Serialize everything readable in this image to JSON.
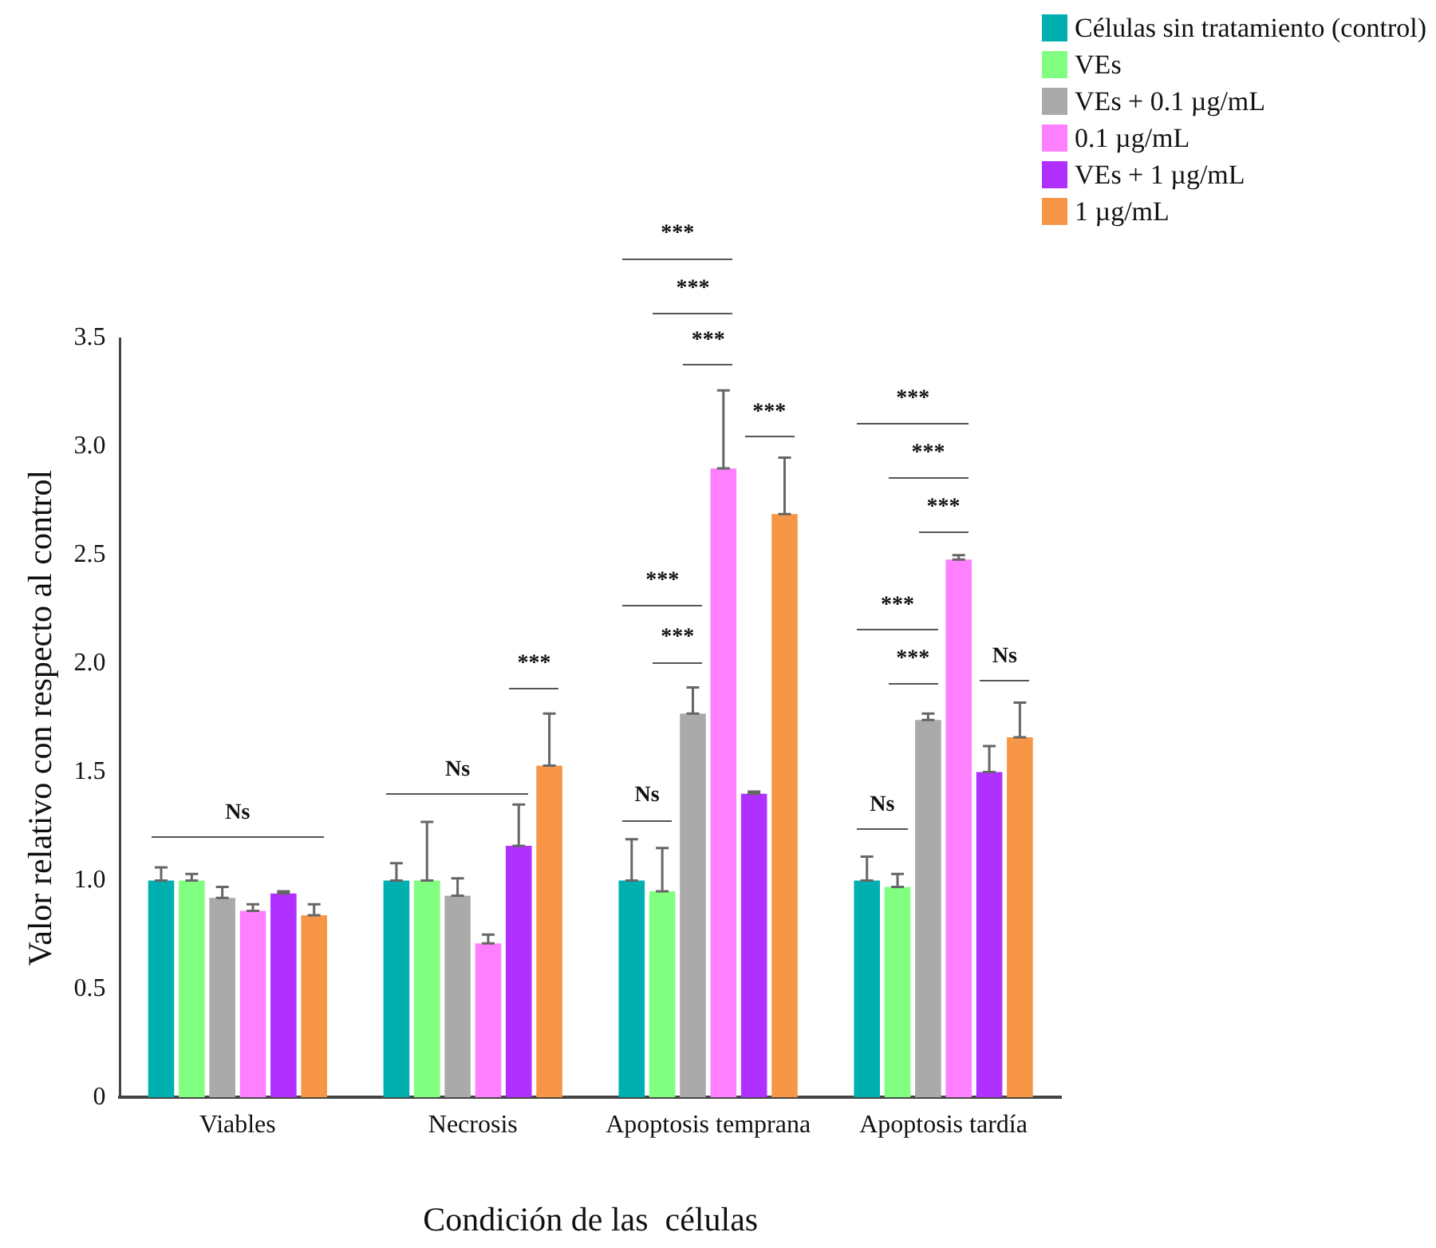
{
  "chart_data": {
    "type": "bar",
    "xlabel": "Condición de las  células",
    "ylabel": "Valor relativo con respecto al control",
    "categories": [
      "Viables",
      "Necrosis",
      "Apoptosis temprana",
      "Apoptosis tardía"
    ],
    "series": [
      {
        "name": "Células sin tratamiento (control)",
        "color": "#00b0b0",
        "values": [
          1.0,
          1.0,
          1.0,
          1.0
        ],
        "errors": [
          [
            1.0,
            1.06
          ],
          [
            1.0,
            1.08
          ],
          [
            1.0,
            1.19
          ],
          [
            1.0,
            1.11
          ]
        ]
      },
      {
        "name": "VEs",
        "color": "#80ff80",
        "values": [
          1.0,
          1.0,
          0.95,
          0.97
        ],
        "errors": [
          [
            1.0,
            1.03
          ],
          [
            1.0,
            1.27
          ],
          [
            0.95,
            1.15
          ],
          [
            0.97,
            1.03
          ]
        ]
      },
      {
        "name": "VEs + 0.1 µg/mL",
        "color": "#aaaaaa",
        "values": [
          0.92,
          0.93,
          1.77,
          1.74
        ],
        "errors": [
          [
            0.92,
            0.97
          ],
          [
            0.93,
            1.01
          ],
          [
            1.77,
            1.89
          ],
          [
            1.74,
            1.77
          ]
        ]
      },
      {
        "name": "0.1 µg/mL",
        "color": "#ff80ff",
        "values": [
          0.86,
          0.71,
          2.9,
          2.48
        ],
        "errors": [
          [
            0.86,
            0.89
          ],
          [
            0.71,
            0.75
          ],
          [
            2.9,
            3.26
          ],
          [
            2.48,
            2.5
          ]
        ]
      },
      {
        "name": "VEs + 1 µg/mL",
        "color": "#b030ff",
        "values": [
          0.94,
          1.16,
          1.4,
          1.5
        ],
        "errors": [
          [
            0.94,
            0.95
          ],
          [
            1.16,
            1.35
          ],
          [
            1.4,
            1.41
          ],
          [
            1.5,
            1.62
          ]
        ]
      },
      {
        "name": "1 µg/mL",
        "color": "#f79646",
        "values": [
          0.84,
          1.53,
          2.69,
          1.66
        ],
        "errors": [
          [
            0.84,
            0.89
          ],
          [
            1.53,
            1.77
          ],
          [
            2.69,
            2.95
          ],
          [
            1.66,
            1.82
          ]
        ]
      }
    ],
    "ylim": [
      0,
      3.5
    ],
    "yticks": [
      0,
      {
        "value": 0.5,
        "label": "0.5"
      },
      {
        "value": 1,
        "label": "1.0"
      },
      {
        "value": 1.5,
        "label": "1.5"
      },
      {
        "value": 2,
        "label": "2.0"
      },
      {
        "value": 2.5,
        "label": "2.5"
      },
      {
        "value": 3,
        "label": "3.0"
      },
      {
        "value": 3.5,
        "label": "3.5"
      }
    ],
    "grid": false,
    "legend": "top right",
    "annotations": [
      "Ns",
      "Ns",
      "***",
      "***",
      "***",
      "***",
      "***",
      "***",
      "***",
      "Ns",
      "***",
      "***",
      "***",
      "***",
      "***",
      "Ns",
      "Ns"
    ]
  }
}
